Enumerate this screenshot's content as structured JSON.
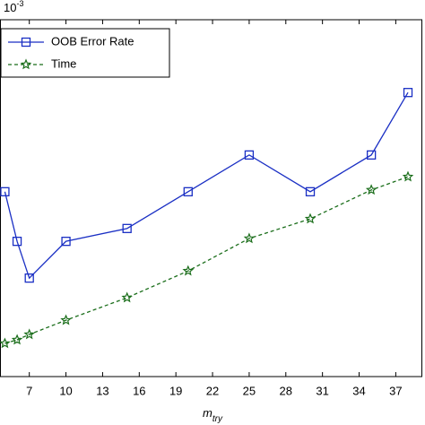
{
  "chart_data": {
    "type": "line",
    "y_exponent": {
      "base": "10",
      "exp": "-3"
    },
    "xlabel": {
      "base": "m",
      "sub": "try"
    },
    "xlim": [
      4.6,
      39.1
    ],
    "ylim": [
      0,
      10
    ],
    "xticks": [
      7,
      10,
      13,
      16,
      19,
      22,
      25,
      28,
      31,
      34,
      37
    ],
    "legend": "top-left",
    "series": [
      {
        "name": "OOB Error Rate",
        "color": "#1a2fc4",
        "marker": "square",
        "dash": "solid",
        "x": [
          5,
          6,
          7,
          10,
          15,
          20,
          25,
          30,
          35,
          38
        ],
        "values": [
          5.18,
          3.79,
          2.76,
          3.79,
          4.15,
          5.18,
          6.21,
          5.18,
          6.21,
          7.96
        ]
      },
      {
        "name": "Time",
        "color": "#1b6e1b",
        "marker": "star",
        "dash": "dashed",
        "x": [
          5,
          6,
          7,
          10,
          15,
          20,
          25,
          30,
          35,
          38
        ],
        "values": [
          0.93,
          1.03,
          1.18,
          1.58,
          2.21,
          2.96,
          3.87,
          4.42,
          5.23,
          5.6
        ]
      }
    ]
  }
}
